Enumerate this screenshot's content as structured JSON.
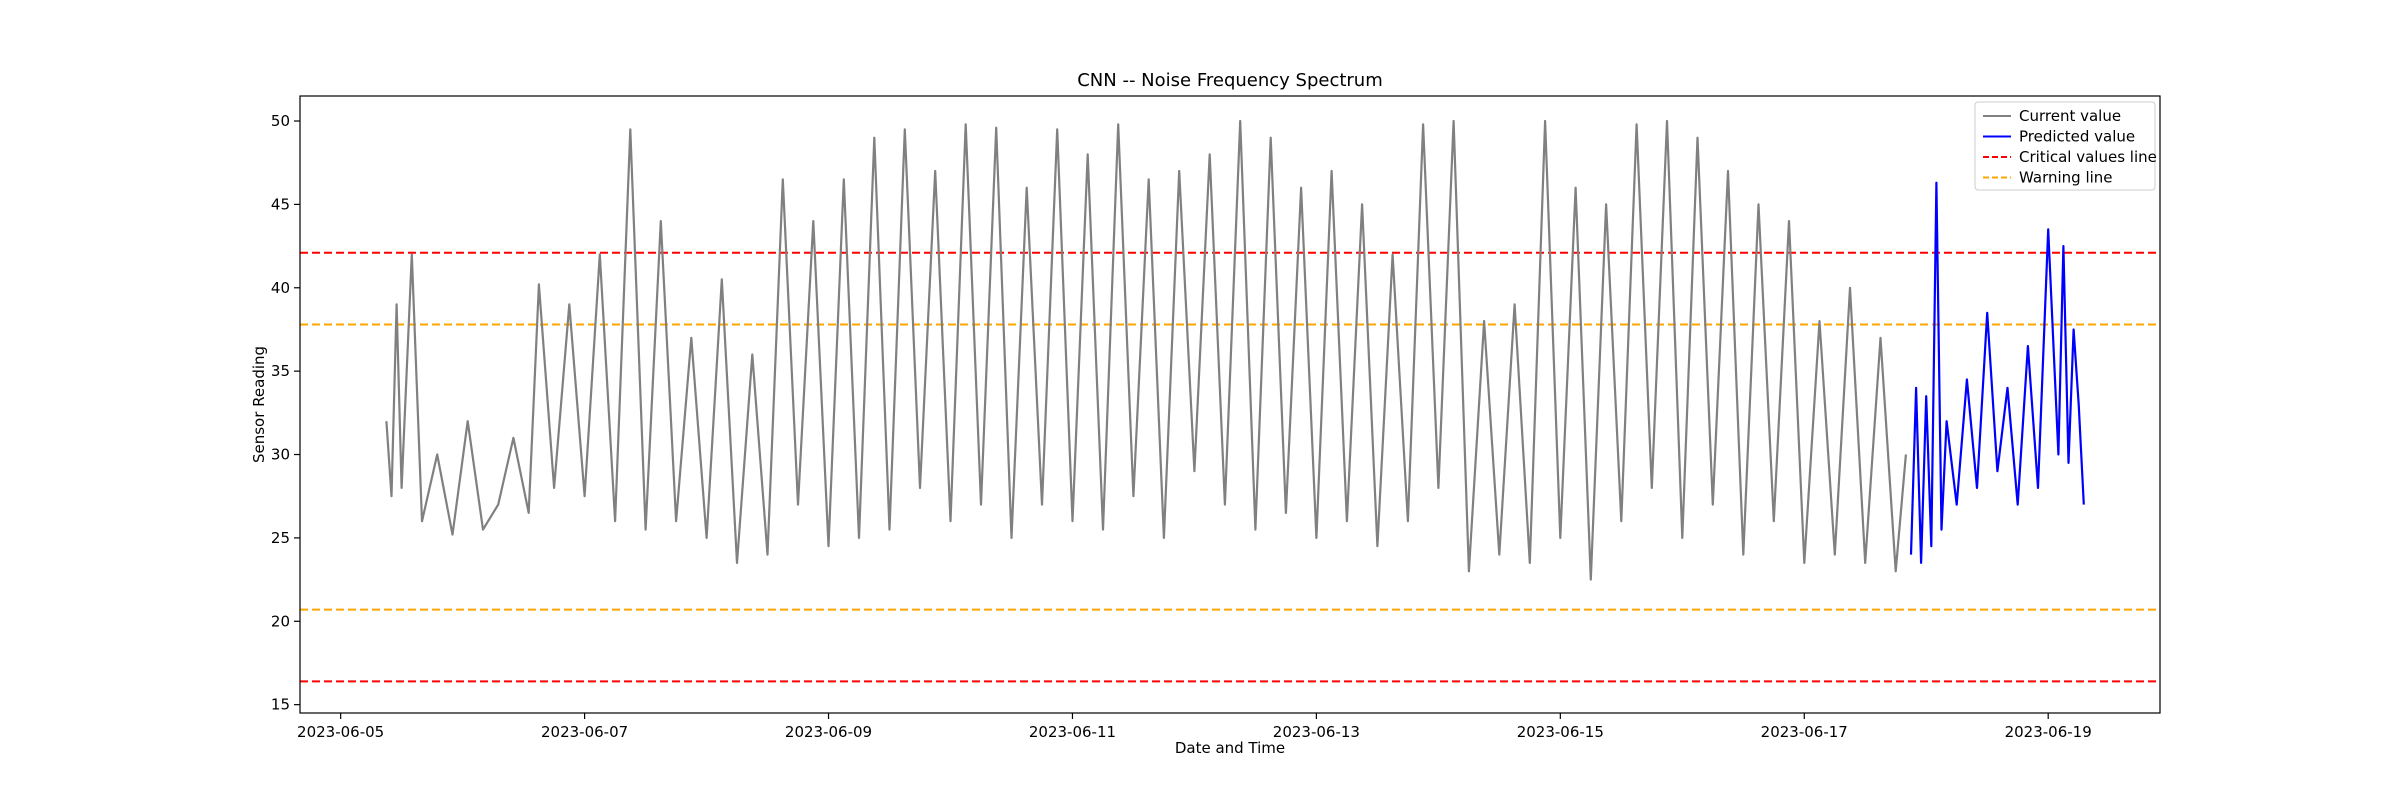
{
  "chart_data": {
    "type": "line",
    "title": "CNN -- Noise Frequency Spectrum",
    "xlabel": "Date and Time",
    "ylabel": "Sensor Reading",
    "xlim": [
      "2023-06-04T16:00",
      "2023-06-19T22:00"
    ],
    "ylim": [
      14.5,
      51.5
    ],
    "y_ticks": [
      15,
      20,
      25,
      30,
      35,
      40,
      45,
      50
    ],
    "x_ticks": [
      "2023-06-05",
      "2023-06-07",
      "2023-06-09",
      "2023-06-11",
      "2023-06-13",
      "2023-06-15",
      "2023-06-17",
      "2023-06-19"
    ],
    "grid": false,
    "legend_position": "upper right",
    "colors": {
      "current": "#808080",
      "predicted": "#0000ff",
      "critical": "#ff0000",
      "warning": "#ffa500"
    },
    "threshold_lines": [
      {
        "name": "Critical values line",
        "value": 42.1,
        "style": "dashed",
        "color": "#ff0000"
      },
      {
        "name": "Critical values line",
        "value": 16.4,
        "style": "dashed",
        "color": "#ff0000"
      },
      {
        "name": "Warning line",
        "value": 37.8,
        "style": "dashed",
        "color": "#ffa500"
      },
      {
        "name": "Warning line",
        "value": 20.7,
        "style": "dashed",
        "color": "#ffa500"
      }
    ],
    "series": [
      {
        "name": "Current value",
        "color": "#808080",
        "x": [
          "2023-06-05T09:00",
          "2023-06-05T10:00",
          "2023-06-05T11:00",
          "2023-06-05T12:00",
          "2023-06-05T14:00",
          "2023-06-05T16:00",
          "2023-06-05T19:00",
          "2023-06-05T22:00",
          "2023-06-06T01:00",
          "2023-06-06T04:00",
          "2023-06-06T07:00",
          "2023-06-06T10:00",
          "2023-06-06T13:00",
          "2023-06-06T15:00",
          "2023-06-06T18:00",
          "2023-06-06T21:00",
          "2023-06-07T00:00",
          "2023-06-07T03:00",
          "2023-06-07T06:00",
          "2023-06-07T09:00",
          "2023-06-07T12:00",
          "2023-06-07T15:00",
          "2023-06-07T18:00",
          "2023-06-07T21:00",
          "2023-06-08T00:00",
          "2023-06-08T03:00",
          "2023-06-08T06:00",
          "2023-06-08T09:00",
          "2023-06-08T12:00",
          "2023-06-08T15:00",
          "2023-06-08T18:00",
          "2023-06-08T21:00",
          "2023-06-09T00:00",
          "2023-06-09T03:00",
          "2023-06-09T06:00",
          "2023-06-09T09:00",
          "2023-06-09T12:00",
          "2023-06-09T15:00",
          "2023-06-09T18:00",
          "2023-06-09T21:00",
          "2023-06-10T00:00",
          "2023-06-10T03:00",
          "2023-06-10T06:00",
          "2023-06-10T09:00",
          "2023-06-10T12:00",
          "2023-06-10T15:00",
          "2023-06-10T18:00",
          "2023-06-10T21:00",
          "2023-06-11T00:00",
          "2023-06-11T03:00",
          "2023-06-11T06:00",
          "2023-06-11T09:00",
          "2023-06-11T12:00",
          "2023-06-11T15:00",
          "2023-06-11T18:00",
          "2023-06-11T21:00",
          "2023-06-12T00:00",
          "2023-06-12T03:00",
          "2023-06-12T06:00",
          "2023-06-12T09:00",
          "2023-06-12T12:00",
          "2023-06-12T15:00",
          "2023-06-12T18:00",
          "2023-06-12T21:00",
          "2023-06-13T00:00",
          "2023-06-13T03:00",
          "2023-06-13T06:00",
          "2023-06-13T09:00",
          "2023-06-13T12:00",
          "2023-06-13T15:00",
          "2023-06-13T18:00",
          "2023-06-13T21:00",
          "2023-06-14T00:00",
          "2023-06-14T03:00",
          "2023-06-14T06:00",
          "2023-06-14T09:00",
          "2023-06-14T12:00",
          "2023-06-14T15:00",
          "2023-06-14T18:00",
          "2023-06-14T21:00",
          "2023-06-15T00:00",
          "2023-06-15T03:00",
          "2023-06-15T06:00",
          "2023-06-15T09:00",
          "2023-06-15T12:00",
          "2023-06-15T15:00",
          "2023-06-15T18:00",
          "2023-06-15T21:00",
          "2023-06-16T00:00",
          "2023-06-16T03:00",
          "2023-06-16T06:00",
          "2023-06-16T09:00",
          "2023-06-16T12:00",
          "2023-06-16T15:00",
          "2023-06-16T18:00",
          "2023-06-16T21:00",
          "2023-06-17T00:00",
          "2023-06-17T03:00",
          "2023-06-17T06:00",
          "2023-06-17T09:00",
          "2023-06-17T12:00",
          "2023-06-17T15:00",
          "2023-06-17T18:00",
          "2023-06-17T20:00"
        ],
        "y": [
          32.0,
          27.5,
          39.0,
          28.0,
          42.0,
          26.0,
          30.0,
          25.2,
          32.0,
          25.5,
          27.0,
          31.0,
          26.5,
          40.2,
          28.0,
          39.0,
          27.5,
          42.0,
          26.0,
          49.5,
          25.5,
          44.0,
          26.0,
          37.0,
          25.0,
          40.5,
          23.5,
          36.0,
          24.0,
          46.5,
          27.0,
          44.0,
          24.5,
          46.5,
          25.0,
          49.0,
          25.5,
          49.5,
          28.0,
          47.0,
          26.0,
          49.8,
          27.0,
          49.6,
          25.0,
          46.0,
          27.0,
          49.5,
          26.0,
          48.0,
          25.5,
          49.8,
          27.5,
          46.5,
          25.0,
          47.0,
          29.0,
          48.0,
          27.0,
          50.0,
          25.5,
          49.0,
          26.5,
          46.0,
          25.0,
          47.0,
          26.0,
          45.0,
          24.5,
          42.0,
          26.0,
          49.8,
          28.0,
          50.0,
          23.0,
          38.0,
          24.0,
          39.0,
          23.5,
          50.0,
          25.0,
          46.0,
          22.5,
          45.0,
          26.0,
          49.8,
          28.0,
          50.0,
          25.0,
          49.0,
          27.0,
          47.0,
          24.0,
          45.0,
          26.0,
          44.0,
          23.5,
          38.0,
          24.0,
          40.0,
          23.5,
          37.0,
          23.0,
          30.0
        ]
      },
      {
        "name": "Predicted value",
        "color": "#0000ff",
        "x": [
          "2023-06-17T21:00",
          "2023-06-17T22:00",
          "2023-06-17T23:00",
          "2023-06-18T00:00",
          "2023-06-18T01:00",
          "2023-06-18T02:00",
          "2023-06-18T03:00",
          "2023-06-18T04:00",
          "2023-06-18T06:00",
          "2023-06-18T08:00",
          "2023-06-18T10:00",
          "2023-06-18T12:00",
          "2023-06-18T14:00",
          "2023-06-18T16:00",
          "2023-06-18T18:00",
          "2023-06-18T20:00",
          "2023-06-18T22:00",
          "2023-06-19T00:00",
          "2023-06-19T02:00",
          "2023-06-19T03:00",
          "2023-06-19T04:00",
          "2023-06-19T05:00",
          "2023-06-19T06:00",
          "2023-06-19T07:00"
        ],
        "y": [
          24.0,
          34.0,
          23.5,
          33.5,
          24.5,
          46.3,
          25.5,
          32.0,
          27.0,
          34.5,
          28.0,
          38.5,
          29.0,
          34.0,
          27.0,
          36.5,
          28.0,
          43.5,
          30.0,
          42.5,
          29.5,
          37.5,
          33.0,
          27.0
        ]
      }
    ]
  },
  "legend": {
    "items": [
      {
        "label": "Current value",
        "color": "#808080",
        "style": "solid"
      },
      {
        "label": "Predicted value",
        "color": "#0000ff",
        "style": "solid"
      },
      {
        "label": "Critical values line",
        "color": "#ff0000",
        "style": "dashed"
      },
      {
        "label": "Warning line",
        "color": "#ffa500",
        "style": "dashed"
      }
    ]
  }
}
